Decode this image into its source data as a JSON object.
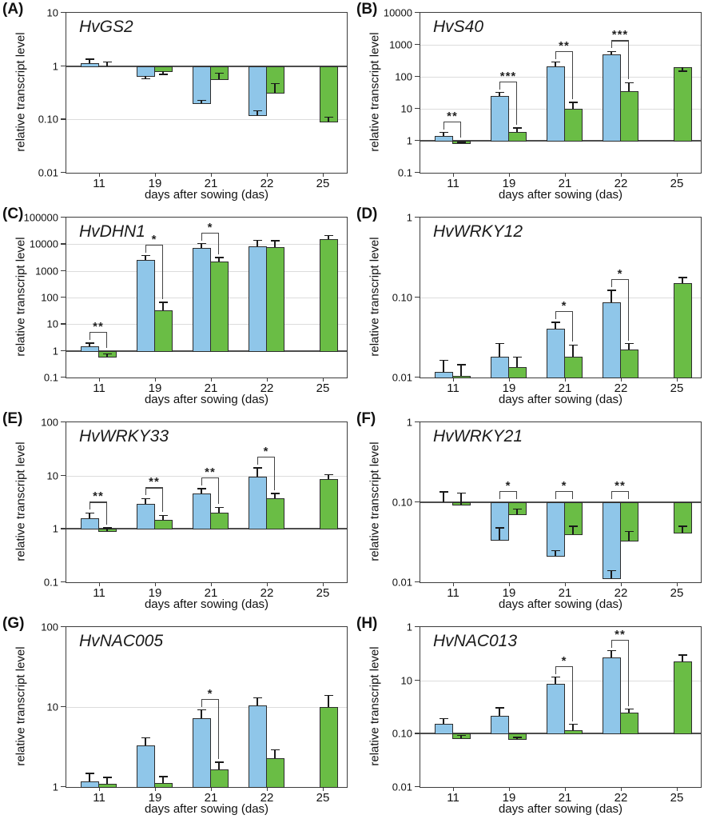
{
  "figure": {
    "xlabel": "days after sowing (das)",
    "ylabel": "relative transcript level",
    "x_categories": [
      "11",
      "19",
      "21",
      "22",
      "25"
    ],
    "series_colors": {
      "blue": "#8FC6E9",
      "green": "#6ABD45"
    },
    "bar_border_color": "#2d2d2d",
    "gridline_color": "#dcdcdc",
    "baseline_color": "#4d4d4d"
  },
  "chart_data": [
    {
      "panel_label": "(A)",
      "gene": "HvGS2",
      "type": "bar",
      "yscale": "log",
      "ytick_labels": [
        "10",
        "1",
        "0.10",
        "0.01"
      ],
      "ylim_top": 10,
      "decades": 3,
      "baseline": 1,
      "categories": [
        "11",
        "19",
        "21",
        "22",
        "25"
      ],
      "series": [
        {
          "name": "blue",
          "values": [
            1.15,
            0.65,
            0.2,
            0.12,
            null
          ],
          "err": [
            1.35,
            0.58,
            0.23,
            0.145,
            null
          ]
        },
        {
          "name": "green",
          "values": [
            1.0,
            0.8,
            0.56,
            0.32,
            0.09
          ],
          "err": [
            1.2,
            0.7,
            0.73,
            0.47,
            0.11
          ]
        }
      ],
      "significance": [
        "",
        "",
        "",
        "",
        ""
      ]
    },
    {
      "panel_label": "(B)",
      "gene": "HvS40",
      "type": "bar",
      "yscale": "log",
      "ytick_labels": [
        "10000",
        "1000",
        "100",
        "10",
        "1",
        "0.1"
      ],
      "ylim_top": 10000,
      "decades": 5,
      "baseline": 1,
      "categories": [
        "11",
        "19",
        "21",
        "22",
        "25"
      ],
      "series": [
        {
          "name": "blue",
          "values": [
            1.4,
            25,
            210,
            500,
            null
          ],
          "err": [
            1.8,
            32,
            285,
            620,
            null
          ]
        },
        {
          "name": "green",
          "values": [
            0.82,
            1.9,
            10,
            36,
            205
          ],
          "err": [
            0.9,
            2.5,
            16,
            65,
            150
          ]
        }
      ],
      "significance": [
        "**",
        "***",
        "**",
        "***",
        ""
      ]
    },
    {
      "panel_label": "(C)",
      "gene": "HvDHN1",
      "type": "bar",
      "yscale": "log",
      "ytick_labels": [
        "100000",
        "10000",
        "1000",
        "100",
        "10",
        "1",
        "0.1"
      ],
      "ylim_top": 100000,
      "decades": 6,
      "baseline": 1,
      "categories": [
        "11",
        "19",
        "21",
        "22",
        "25"
      ],
      "series": [
        {
          "name": "blue",
          "values": [
            1.5,
            2500,
            7200,
            8500,
            null
          ],
          "err": [
            1.95,
            3700,
            10500,
            14000,
            null
          ]
        },
        {
          "name": "green",
          "values": [
            0.62,
            33,
            2300,
            7800,
            15500
          ],
          "err": [
            0.78,
            66,
            3200,
            13500,
            21000
          ]
        }
      ],
      "significance": [
        "**",
        "*",
        "*",
        "",
        ""
      ]
    },
    {
      "panel_label": "(D)",
      "gene": "HvWRKY12",
      "type": "bar",
      "yscale": "log",
      "ytick_labels": [
        "1",
        "0.10",
        "0.01"
      ],
      "ylim_top": 1,
      "decades": 2,
      "baseline": 0.01,
      "categories": [
        "11",
        "19",
        "21",
        "22",
        "25"
      ],
      "series": [
        {
          "name": "blue",
          "values": [
            0.0117,
            0.018,
            0.041,
            0.087,
            null
          ],
          "err": [
            0.0165,
            0.0265,
            0.049,
            0.123,
            null
          ]
        },
        {
          "name": "green",
          "values": [
            0.0105,
            0.0135,
            0.018,
            0.0225,
            0.152
          ],
          "err": [
            0.0145,
            0.018,
            0.0255,
            0.0265,
            0.178
          ]
        }
      ],
      "significance": [
        "",
        "",
        "*",
        "*",
        ""
      ]
    },
    {
      "panel_label": "(E)",
      "gene": "HvWRKY33",
      "type": "bar",
      "yscale": "log",
      "ytick_labels": [
        "100",
        "10",
        "1",
        "0.1"
      ],
      "ylim_top": 100,
      "decades": 3,
      "baseline": 1,
      "categories": [
        "11",
        "19",
        "21",
        "22",
        "25"
      ],
      "series": [
        {
          "name": "blue",
          "values": [
            1.6,
            3.0,
            4.7,
            9.5,
            null
          ],
          "err": [
            2.0,
            3.7,
            5.7,
            14,
            null
          ]
        },
        {
          "name": "green",
          "values": [
            0.92,
            1.5,
            2.0,
            3.7,
            8.7
          ],
          "err": [
            1.05,
            1.8,
            2.55,
            4.6,
            10.5
          ]
        }
      ],
      "significance": [
        "**",
        "**",
        "**",
        "*",
        ""
      ]
    },
    {
      "panel_label": "(F)",
      "gene": "HvWRKY21",
      "type": "bar",
      "yscale": "log",
      "ytick_labels": [
        "1",
        "0.10",
        "0.01"
      ],
      "ylim_top": 1,
      "decades": 2,
      "baseline": 0.1,
      "categories": [
        "11",
        "19",
        "21",
        "22",
        "25"
      ],
      "series": [
        {
          "name": "blue",
          "values": [
            0.1,
            0.034,
            0.0215,
            0.0112,
            null
          ],
          "err": [
            0.135,
            0.048,
            0.025,
            0.014,
            null
          ]
        },
        {
          "name": "green",
          "values": [
            0.093,
            0.071,
            0.04,
            0.033,
            0.042
          ],
          "err": [
            0.13,
            0.082,
            0.05,
            0.043,
            0.05
          ]
        }
      ],
      "significance": [
        "",
        "*",
        "*",
        "**",
        ""
      ]
    },
    {
      "panel_label": "(G)",
      "gene": "HvNAC005",
      "type": "bar",
      "yscale": "log",
      "ytick_labels": [
        "100",
        "10",
        "1"
      ],
      "ylim_top": 100,
      "decades": 2,
      "baseline": 1,
      "categories": [
        "11",
        "19",
        "21",
        "22",
        "25"
      ],
      "series": [
        {
          "name": "blue",
          "values": [
            1.18,
            3.3,
            7.3,
            10.5,
            null
          ],
          "err": [
            1.48,
            4.1,
            9.2,
            13,
            null
          ]
        },
        {
          "name": "green",
          "values": [
            1.1,
            1.12,
            1.65,
            2.3,
            10
          ],
          "err": [
            1.32,
            1.35,
            2.05,
            2.9,
            14
          ]
        }
      ],
      "significance": [
        "",
        "",
        "*",
        "",
        ""
      ]
    },
    {
      "panel_label": "(H)",
      "gene": "HvNAC013",
      "type": "bar",
      "yscale": "log",
      "ytick_labels": [
        "1",
        "10",
        "0.10",
        "0.01"
      ],
      "ylim_top": 10,
      "decades": 3,
      "baseline": 0.1,
      "categories": [
        "11",
        "19",
        "21",
        "22",
        "25"
      ],
      "series": [
        {
          "name": "blue",
          "values": [
            0.155,
            0.215,
            0.85,
            2.7,
            null
          ],
          "err": [
            0.19,
            0.305,
            1.15,
            3.6,
            null
          ]
        },
        {
          "name": "green",
          "values": [
            0.083,
            0.079,
            0.115,
            0.245,
            2.3
          ],
          "err": [
            0.092,
            0.085,
            0.15,
            0.29,
            3.0
          ]
        }
      ],
      "significance": [
        "",
        "",
        "*",
        "**",
        ""
      ]
    }
  ]
}
